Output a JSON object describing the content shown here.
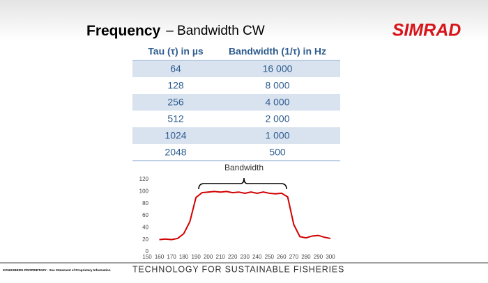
{
  "header": {
    "title_bold": "Frequency",
    "title_rest": "– Bandwidth CW",
    "logo": "SIMRAD"
  },
  "table": {
    "columns": [
      "Tau (τ) in µs",
      "Bandwidth (1/τ) in Hz"
    ],
    "rows": [
      [
        "64",
        "16 000"
      ],
      [
        "128",
        "8 000"
      ],
      [
        "256",
        "4 000"
      ],
      [
        "512",
        "2 000"
      ],
      [
        "1024",
        "1 000"
      ],
      [
        "2048",
        "500"
      ]
    ]
  },
  "chart_data": {
    "type": "line",
    "annotation": "Bandwidth",
    "x": [
      160,
      165,
      170,
      175,
      180,
      185,
      190,
      195,
      200,
      205,
      210,
      215,
      220,
      225,
      230,
      235,
      240,
      245,
      250,
      255,
      260,
      265,
      270,
      275,
      280,
      285,
      290,
      295,
      300
    ],
    "values": [
      20,
      21,
      20,
      22,
      30,
      50,
      90,
      98,
      99,
      100,
      99,
      100,
      98,
      99,
      97,
      99,
      97,
      99,
      97,
      96,
      97,
      91,
      45,
      25,
      23,
      26,
      27,
      24,
      22
    ],
    "color": "#d00000",
    "xlim": [
      150,
      300
    ],
    "xticks": [
      150,
      160,
      170,
      180,
      190,
      200,
      210,
      220,
      230,
      240,
      250,
      260,
      270,
      280,
      290,
      300
    ],
    "ylim": [
      0,
      120
    ],
    "yticks": [
      0,
      20,
      40,
      60,
      80,
      100,
      120
    ]
  },
  "footer": {
    "proprietary": "KONGSBERG PROPRIETARY - See Statement of Proprietary Information",
    "tagline": "TECHNOLOGY FOR SUSTAINABLE FISHERIES"
  }
}
